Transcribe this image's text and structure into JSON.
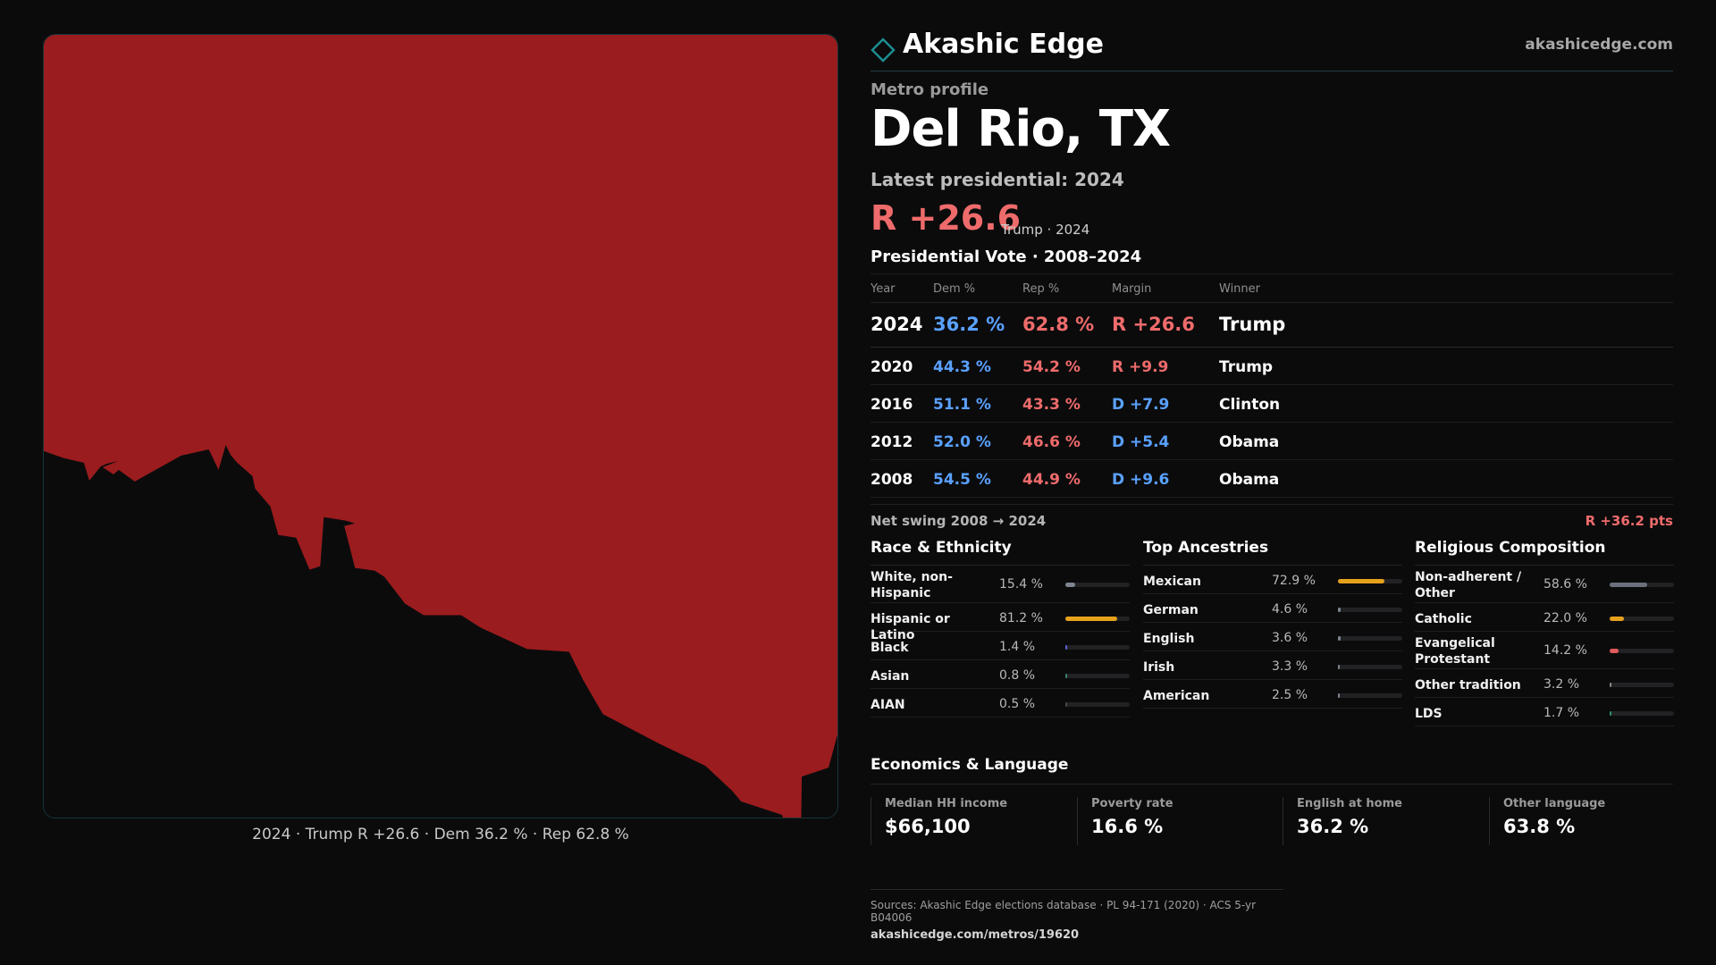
{
  "map": {
    "caption": "2024 · Trump R +26.6 · Dem 36.2 % · Rep 62.8 %",
    "fill_color": "#9b1c1e",
    "background_color": "#0b0b0c"
  },
  "header": {
    "brand": "Akashic Edge",
    "url": "akashicedge.com",
    "logo_icon": "diamond-outline-icon"
  },
  "profile": {
    "eyebrow": "Metro profile",
    "metro_name": "Del Rio, TX",
    "latest_label": "Latest presidential: 2024",
    "margin": "R +26.6",
    "margin_sub": "Trump · 2024"
  },
  "vote_table": {
    "title": "Presidential Vote · 2008–2024",
    "headers": [
      "Year",
      "Dem %",
      "Rep %",
      "Margin",
      "Winner"
    ],
    "rows": [
      {
        "year": "2024",
        "dem": "36.2 %",
        "rep": "62.8 %",
        "margin": "R +26.6",
        "party": "R",
        "winner": "Trump"
      },
      {
        "year": "2020",
        "dem": "44.3 %",
        "rep": "54.2 %",
        "margin": "R +9.9",
        "party": "R",
        "winner": "Trump"
      },
      {
        "year": "2016",
        "dem": "51.1 %",
        "rep": "43.3 %",
        "margin": "D +7.9",
        "party": "D",
        "winner": "Clinton"
      },
      {
        "year": "2012",
        "dem": "52.0 %",
        "rep": "46.6 %",
        "margin": "D +5.4",
        "party": "D",
        "winner": "Obama"
      },
      {
        "year": "2008",
        "dem": "54.5 %",
        "rep": "44.9 %",
        "margin": "D +9.6",
        "party": "D",
        "winner": "Obama"
      }
    ]
  },
  "swing": {
    "label": "Net swing 2008 → 2024",
    "value": "R +36.2 pts"
  },
  "race": {
    "title": "Race & Ethnicity",
    "items": [
      {
        "label": "White, non-Hispanic",
        "value": "15.4 %",
        "pct": 15.4,
        "color": "#7d8591"
      },
      {
        "label": "Hispanic or Latino",
        "value": "81.2 %",
        "pct": 81.2,
        "color": "#e6a21b"
      },
      {
        "label": "Black",
        "value": "1.4 %",
        "pct": 1.4,
        "color": "#5a63d8"
      },
      {
        "label": "Asian",
        "value": "0.8 %",
        "pct": 0.8,
        "color": "#3f7f6f"
      },
      {
        "label": "AIAN",
        "value": "0.5 %",
        "pct": 0.5,
        "color": "#4a4a4a"
      }
    ]
  },
  "ancestry": {
    "title": "Top Ancestries",
    "items": [
      {
        "label": "Mexican",
        "value": "72.9 %",
        "pct": 72.9,
        "color": "#e6a21b"
      },
      {
        "label": "German",
        "value": "4.6 %",
        "pct": 4.6,
        "color": "#7d8591"
      },
      {
        "label": "English",
        "value": "3.6 %",
        "pct": 3.6,
        "color": "#7d8591"
      },
      {
        "label": "Irish",
        "value": "3.3 %",
        "pct": 3.3,
        "color": "#7d8591"
      },
      {
        "label": "American",
        "value": "2.5 %",
        "pct": 2.5,
        "color": "#7d8591"
      }
    ]
  },
  "religion": {
    "title": "Religious Composition",
    "items": [
      {
        "label": "Non-adherent / Other",
        "value": "58.6 %",
        "pct": 58.6,
        "color": "#6b717c"
      },
      {
        "label": "Catholic",
        "value": "22.0 %",
        "pct": 22.0,
        "color": "#e6a21b"
      },
      {
        "label": "Evangelical Protestant",
        "value": "14.2 %",
        "pct": 14.2,
        "color": "#e25b5b"
      },
      {
        "label": "Other tradition",
        "value": "3.2 %",
        "pct": 3.2,
        "color": "#8a8a8a"
      },
      {
        "label": "LDS",
        "value": "1.7 %",
        "pct": 1.7,
        "color": "#2f8f6f"
      }
    ]
  },
  "economics": {
    "title": "Economics & Language",
    "cells": [
      {
        "label": "Median HH income",
        "value": "$66,100"
      },
      {
        "label": "Poverty rate",
        "value": "16.6 %"
      },
      {
        "label": "English at home",
        "value": "36.2 %"
      },
      {
        "label": "Other language",
        "value": "63.8 %"
      }
    ]
  },
  "sources": {
    "line": "Sources: Akashic Edge elections database · PL 94-171 (2020) · ACS 5-yr B04006",
    "url": "akashicedge.com/metros/19620"
  }
}
